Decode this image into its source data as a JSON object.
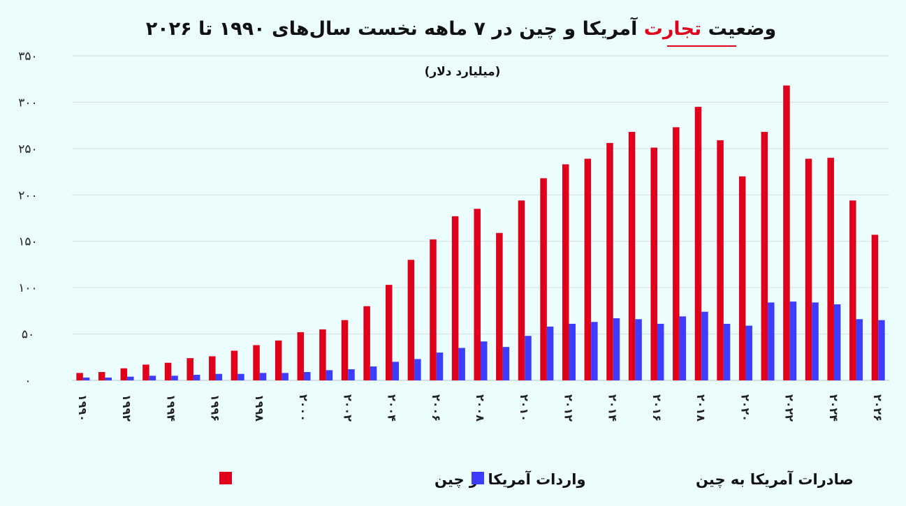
{
  "chart_data": {
    "type": "bar",
    "title_parts": [
      "وضعیت ",
      "تجارت",
      " آمریکا و چین در ۷ ماهه نخست سال‌های ۱۹۹۰ تا ۲۰۲۶"
    ],
    "subtitle": "(میلیارد دلار)",
    "ylim": [
      0,
      350
    ],
    "yticks": [
      0,
      50,
      100,
      150,
      200,
      250,
      300,
      350
    ],
    "ytick_labels": [
      "۰",
      "۵۰",
      "۱۰۰",
      "۱۵۰",
      "۲۰۰",
      "۲۵۰",
      "۳۰۰",
      "۳۵۰"
    ],
    "categories": [
      1990,
      1991,
      1992,
      1993,
      1994,
      1995,
      1996,
      1997,
      1998,
      1999,
      2000,
      2001,
      2002,
      2003,
      2004,
      2005,
      2006,
      2007,
      2008,
      2009,
      2010,
      2011,
      2012,
      2013,
      2014,
      2015,
      2016,
      2017,
      2018,
      2019,
      2020,
      2021,
      2022,
      2023,
      2024,
      2025,
      2026
    ],
    "xtick_labels": [
      "۱۹۹۰",
      "۱۹۹۲",
      "۱۹۹۴",
      "۱۹۹۶",
      "۱۹۹۸",
      "۲۰۰۰",
      "۲۰۰۲",
      "۲۰۰۴",
      "۲۰۰۶",
      "۲۰۰۸",
      "۲۰۱۰",
      "۲۰۱۲",
      "۲۰۱۴",
      "۲۰۱۶",
      "۲۰۱۸",
      "۲۰۲۰",
      "۲۰۲۲",
      "۲۰۲۴",
      "۲۰۲۶"
    ],
    "series": [
      {
        "name": "واردات آمریکا از چین",
        "color": "#e0001b",
        "values": [
          8,
          9,
          13,
          17,
          19,
          24,
          26,
          32,
          38,
          43,
          52,
          55,
          65,
          80,
          103,
          130,
          152,
          177,
          185,
          159,
          194,
          218,
          233,
          239,
          256,
          268,
          251,
          273,
          295,
          259,
          220,
          268,
          318,
          239,
          240,
          194,
          157
        ]
      },
      {
        "name": "صادرات آمریکا به چین",
        "color": "#3d3dff",
        "values": [
          3,
          3,
          4,
          5,
          5,
          6,
          7,
          7,
          8,
          8,
          9,
          11,
          12,
          15,
          20,
          23,
          30,
          35,
          42,
          36,
          48,
          58,
          61,
          63,
          67,
          66,
          61,
          69,
          74,
          61,
          59,
          84,
          85,
          84,
          82,
          66,
          65
        ]
      }
    ],
    "grid": true,
    "legend_position": "bottom"
  }
}
